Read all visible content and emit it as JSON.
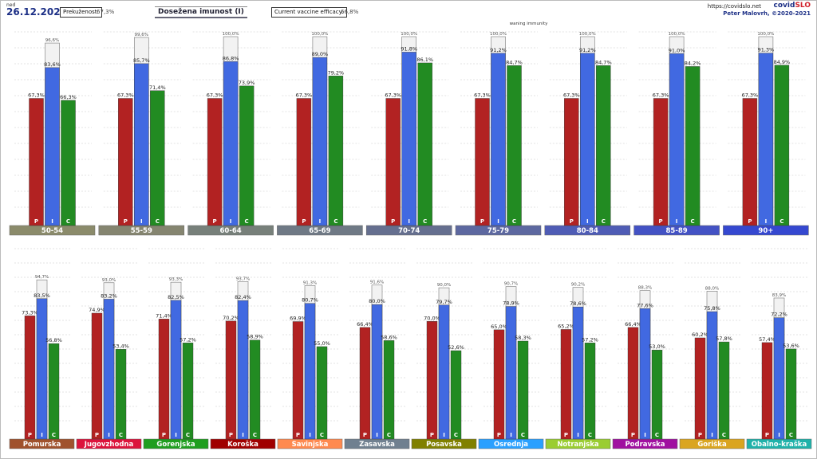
{
  "header": {
    "day": "ned",
    "date": "26.12.2021",
    "prekuzenost_label": "Prekuženost:",
    "prekuzenost_value": "67,3%",
    "title": "Dosežena imunost (I)",
    "efficacy_label": "Current vaccine efficacy:",
    "efficacy_value": "66,8%",
    "url": "https://covidslo.net",
    "brand_a": "covid",
    "brand_b": "SLO",
    "author": "Peter Malovrh, ©2020-2021"
  },
  "colors": {
    "P": "#b22222",
    "I": "#4169e1",
    "C": "#228b22",
    "ghost": "#f2f2f2"
  },
  "chart_data": [
    {
      "type": "bar",
      "title": "",
      "bar_letters": [
        "P",
        "I",
        "C"
      ],
      "annotation": "waning immunity",
      "annotation_group": 5,
      "ylim": [
        0,
        100
      ],
      "categories": [
        "50-54",
        "55-59",
        "60-64",
        "65-69",
        "70-74",
        "75-79",
        "80-84",
        "85-89",
        "90+"
      ],
      "category_colors": [
        "#8b8b6b",
        "#858570",
        "#77807a",
        "#6f7985",
        "#656f8f",
        "#5d68a0",
        "#4f5cb5",
        "#4352c4",
        "#3548d0"
      ],
      "series": [
        {
          "key": "P",
          "labels": [
            "67,3%",
            "67,3%",
            "67,3%",
            "67,3%",
            "67,3%",
            "67,3%",
            "67,3%",
            "67,3%",
            "67,3%"
          ],
          "values": [
            67.3,
            67.3,
            67.3,
            67.3,
            67.3,
            67.3,
            67.3,
            67.3,
            67.3
          ]
        },
        {
          "key": "I",
          "labels": [
            "83,6%",
            "85,7%",
            "86,8%",
            "89,0%",
            "91,8%",
            "91,2%",
            "91,2%",
            "91,0%",
            "91,3%"
          ],
          "values": [
            83.6,
            85.7,
            86.8,
            89.0,
            91.8,
            91.2,
            91.2,
            91.0,
            91.3
          ]
        },
        {
          "key": "C",
          "labels": [
            "66,3%",
            "71,4%",
            "73,9%",
            "79,2%",
            "86,1%",
            "84,7%",
            "84,7%",
            "84,2%",
            "84,9%"
          ],
          "values": [
            66.3,
            71.4,
            73.9,
            79.2,
            86.1,
            84.7,
            84.7,
            84.2,
            84.9
          ]
        },
        {
          "key": "max",
          "labels": [
            "96,6%",
            "99,6%",
            "100,0%",
            "100,0%",
            "100,0%",
            "100,0%",
            "100,0%",
            "100,0%",
            "100,0%"
          ],
          "values": [
            96.6,
            99.6,
            100.0,
            100.0,
            100.0,
            100.0,
            100.0,
            100.0,
            100.0
          ]
        }
      ]
    },
    {
      "type": "bar",
      "title": "",
      "bar_letters": [
        "P",
        "I",
        "C"
      ],
      "ylim": [
        0,
        100
      ],
      "categories": [
        "Pomurska",
        "Jugovzhodna",
        "Gorenjska",
        "Koroška",
        "Savinjska",
        "Zasavska",
        "Posavska",
        "Osrednja",
        "Notranjska",
        "Podravska",
        "Goriška",
        "Obalno-kraška"
      ],
      "category_colors": [
        "#a0522d",
        "#dc143c",
        "#1f9e1f",
        "#a00000",
        "#ff8a50",
        "#708090",
        "#808000",
        "#2aa0ff",
        "#9acd32",
        "#a010a0",
        "#daa520",
        "#20b2aa"
      ],
      "series": [
        {
          "key": "P",
          "labels": [
            "73,3%",
            "74,9%",
            "71,4%",
            "70,2%",
            "69,9%",
            "66,4%",
            "70,0%",
            "65,0%",
            "65,2%",
            "66,4%",
            "60,2%",
            "57,4%"
          ],
          "values": [
            73.3,
            74.9,
            71.4,
            70.2,
            69.9,
            66.4,
            70.0,
            65.0,
            65.2,
            66.4,
            60.2,
            57.4
          ]
        },
        {
          "key": "I",
          "labels": [
            "83,5%",
            "83,2%",
            "82,5%",
            "82,4%",
            "80,7%",
            "80,0%",
            "79,7%",
            "78,9%",
            "78,6%",
            "77,6%",
            "75,8%",
            "72,2%"
          ],
          "values": [
            83.5,
            83.2,
            82.5,
            82.4,
            80.7,
            80.0,
            79.7,
            78.9,
            78.6,
            77.6,
            75.8,
            72.2
          ]
        },
        {
          "key": "C",
          "labels": [
            "56,8%",
            "53,4%",
            "57,2%",
            "58,9%",
            "55,0%",
            "58,6%",
            "52,6%",
            "58,3%",
            "57,2%",
            "53,0%",
            "57,8%",
            "53,6%"
          ],
          "values": [
            56.8,
            53.4,
            57.2,
            58.9,
            55.0,
            58.6,
            52.6,
            58.3,
            57.2,
            53.0,
            57.8,
            53.6
          ]
        },
        {
          "key": "max",
          "labels": [
            "94,7%",
            "93,0%",
            "93,3%",
            "93,7%",
            "91,3%",
            "91,6%",
            "90,0%",
            "90,7%",
            "90,2%",
            "88,3%",
            "88,0%",
            "83,9%"
          ],
          "values": [
            94.7,
            93.0,
            93.3,
            93.7,
            91.3,
            91.6,
            90.0,
            90.7,
            90.2,
            88.3,
            88.0,
            83.9
          ]
        }
      ]
    }
  ]
}
